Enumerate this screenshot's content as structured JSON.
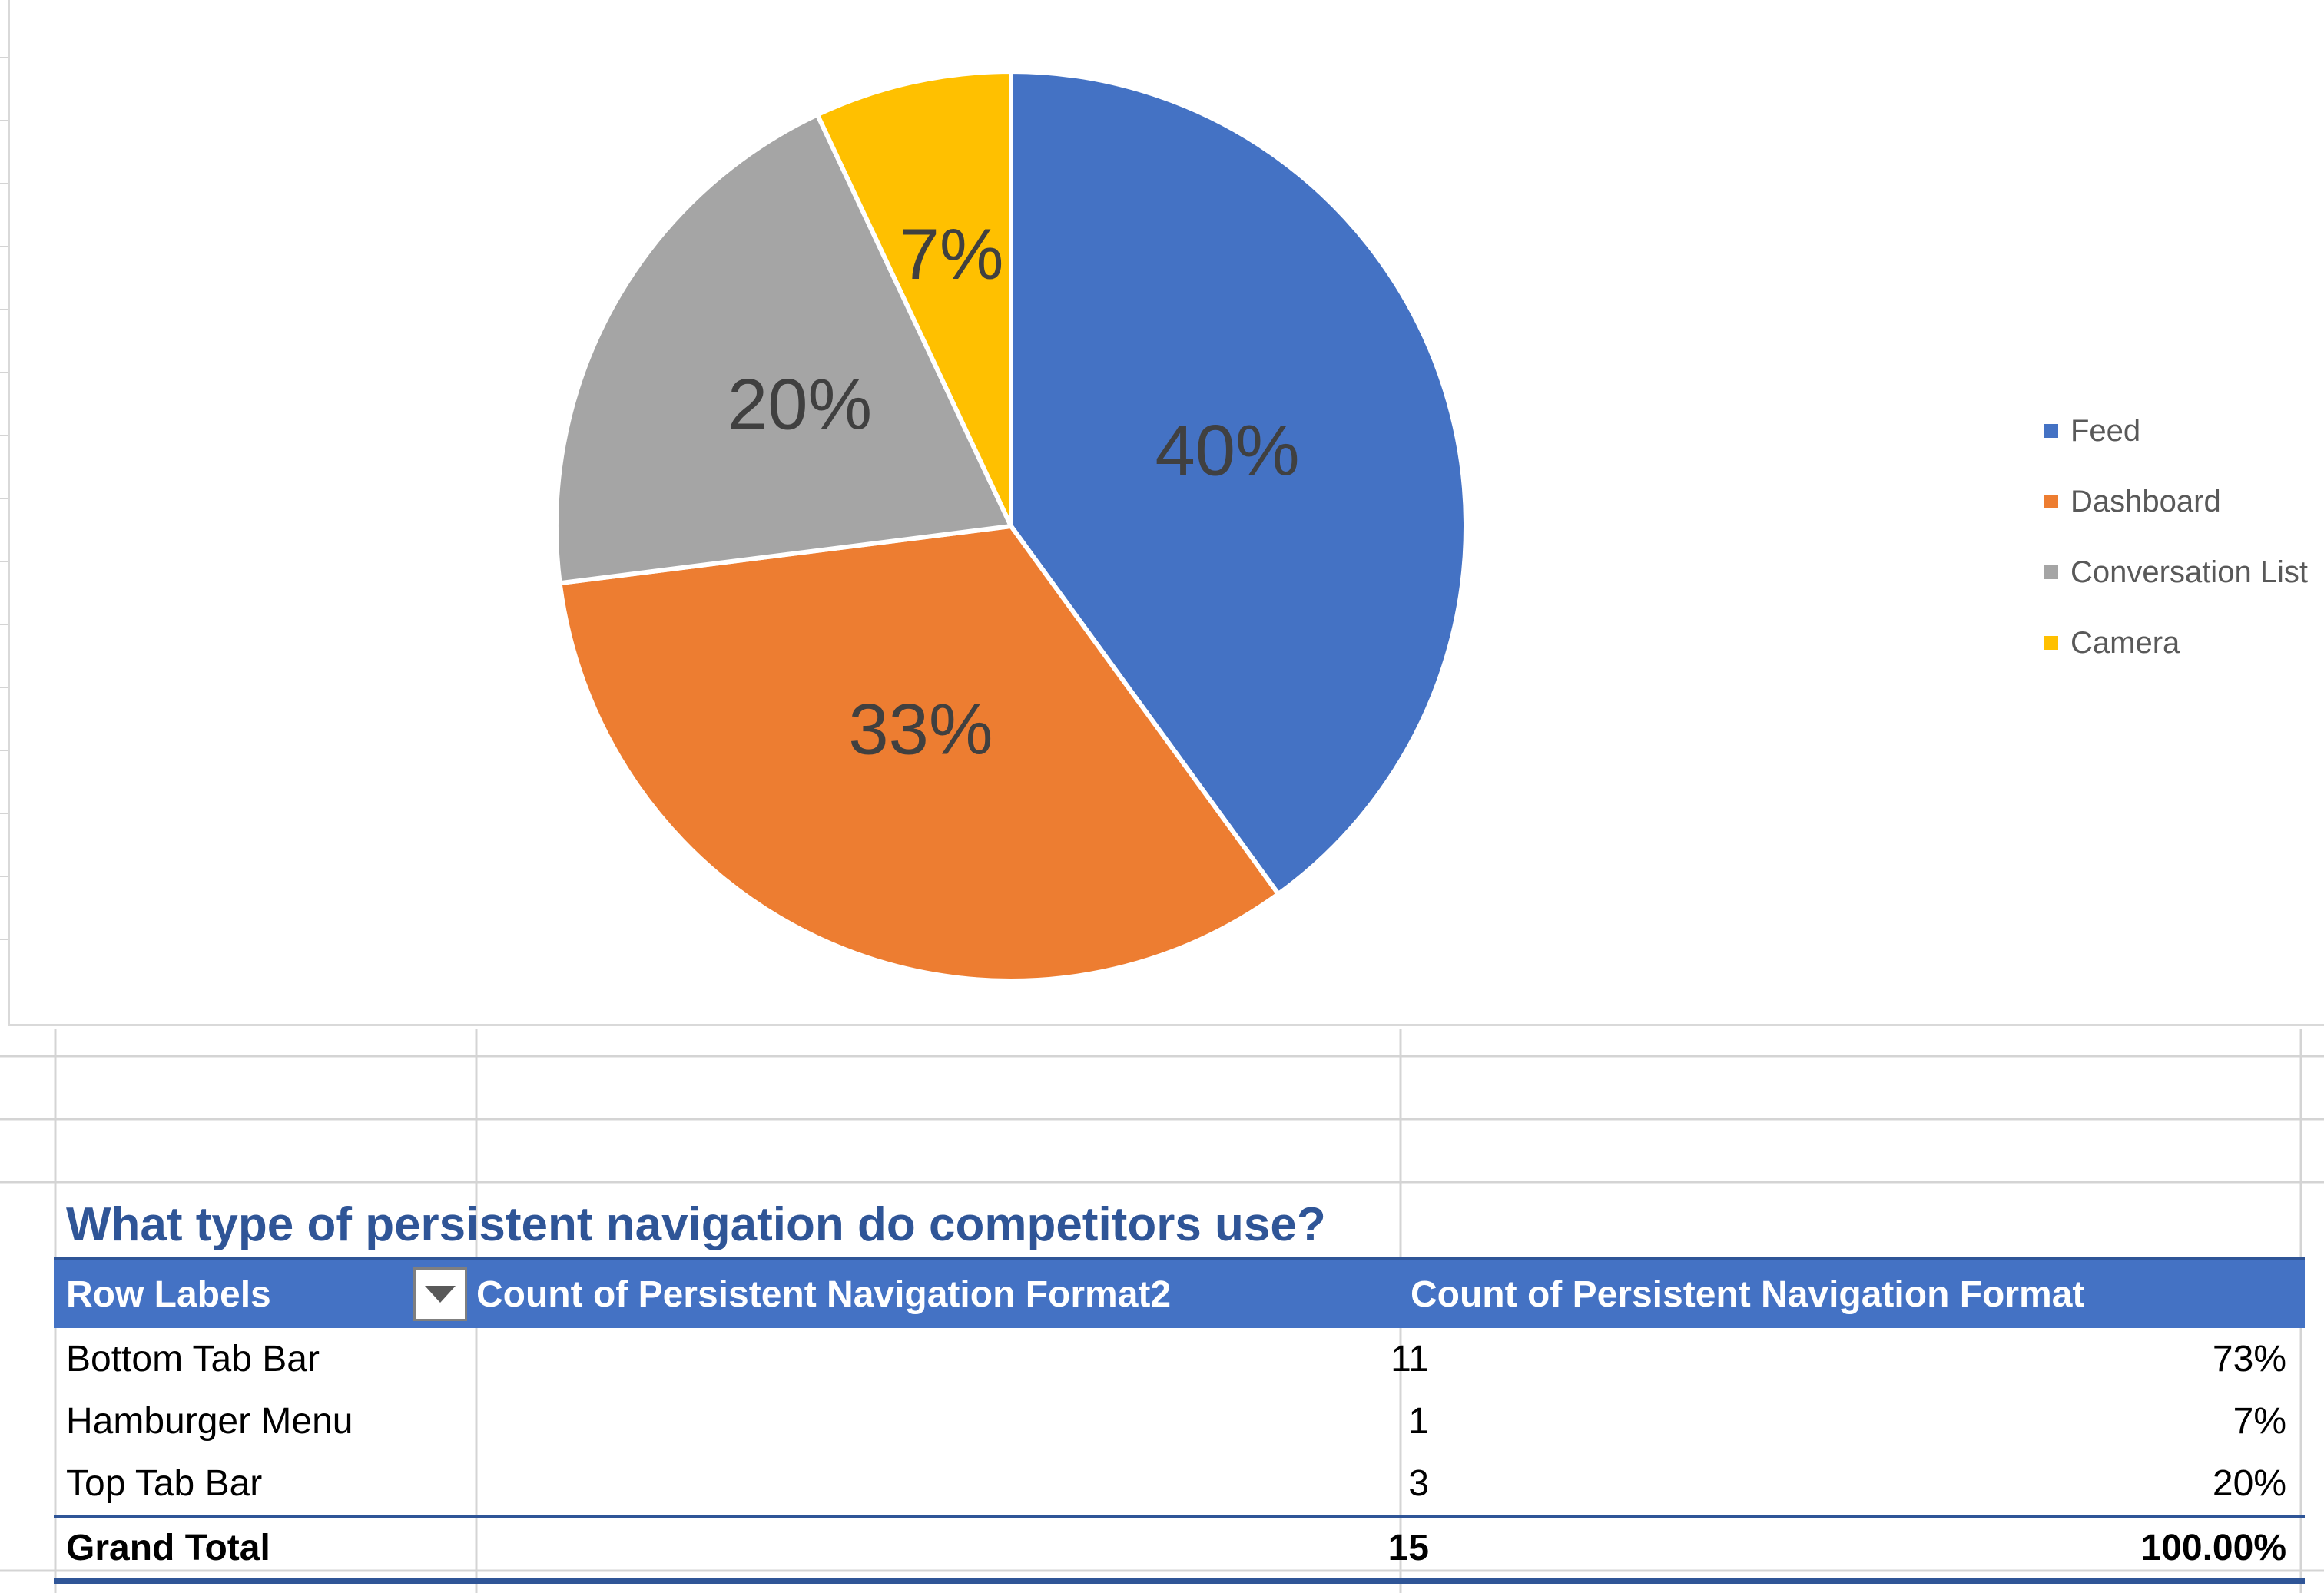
{
  "chart": {
    "title_fragment": "",
    "legend": [
      {
        "label": "Feed",
        "color": "#4472c4"
      },
      {
        "label": "Dashboard",
        "color": "#ed7d31"
      },
      {
        "label": "Conversation List",
        "color": "#a5a5a5"
      },
      {
        "label": "Camera",
        "color": "#ffc000"
      }
    ]
  },
  "chart_data": {
    "type": "pie",
    "categories": [
      "Feed",
      "Dashboard",
      "Conversation List",
      "Camera"
    ],
    "values": [
      40,
      33,
      20,
      7
    ],
    "data_labels": [
      "40%",
      "33%",
      "20%",
      "7%"
    ],
    "colors": [
      "#4472c4",
      "#ed7d31",
      "#a5a5a5",
      "#ffc000"
    ],
    "legend_position": "right"
  },
  "pivot": {
    "title": "What type of persistent navigation do competitors use?",
    "headers": {
      "row_labels": "Row Labels",
      "count2": "Count of Persistent Navigation Format2",
      "count": "Count of Persistent Navigation Format"
    },
    "rows": [
      {
        "label": "Bottom Tab Bar",
        "count2": "11",
        "count": "73%"
      },
      {
        "label": "Hamburger Menu",
        "count2": "1",
        "count": "7%"
      },
      {
        "label": "Top Tab Bar",
        "count2": "3",
        "count": "20%"
      }
    ],
    "total": {
      "label": "Grand Total",
      "count2": "15",
      "count": "100.00%"
    }
  }
}
